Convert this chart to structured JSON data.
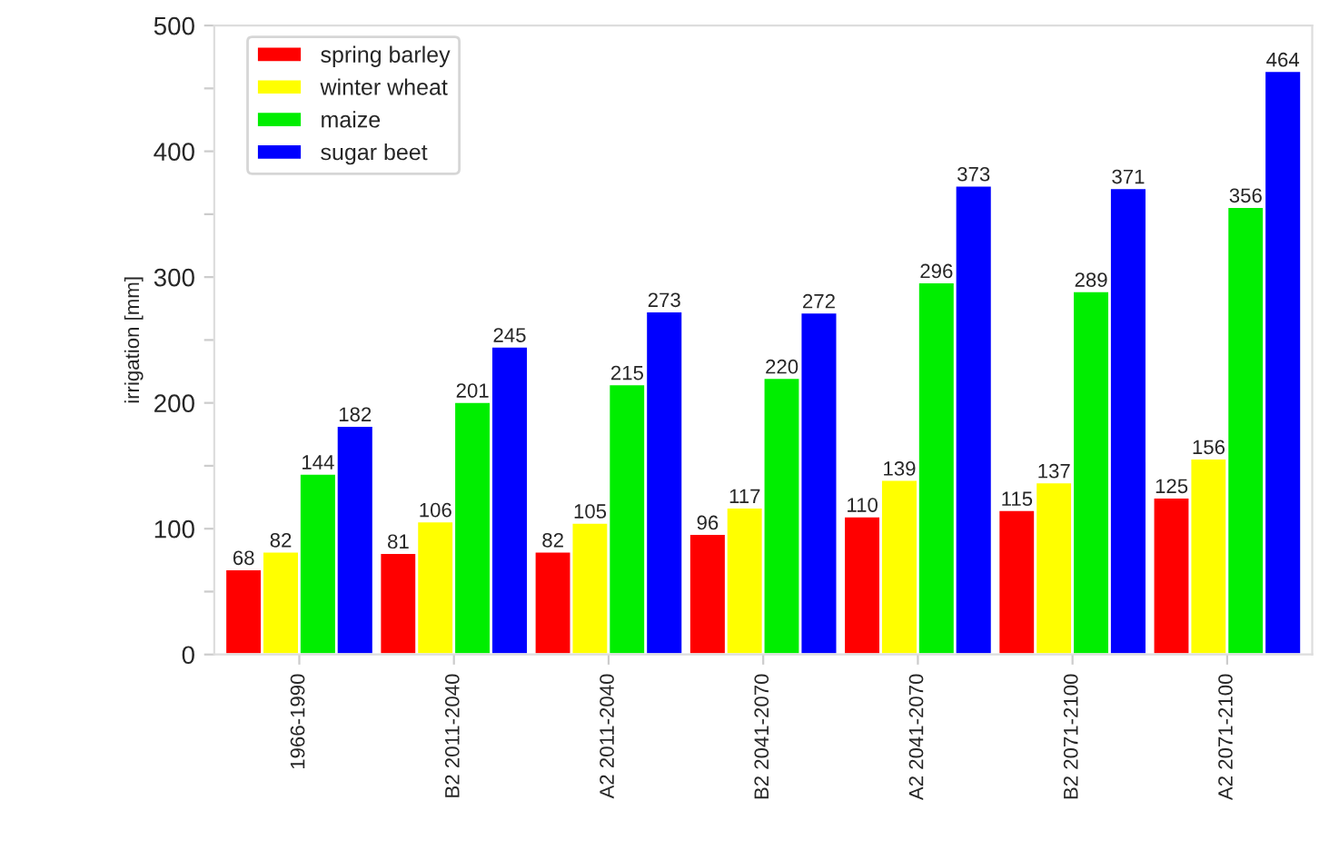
{
  "chart_data": {
    "type": "bar",
    "ylabel": "irrigation [mm]",
    "categories": [
      "1966-1990",
      "B2 2011-2040",
      "A2 2011-2040",
      "B2 2041-2070",
      "A2 2041-2070",
      "B2 2071-2100",
      "A2 2071-2100"
    ],
    "series": [
      {
        "name": "spring barley",
        "color": "#ff0000",
        "values": [
          68,
          81,
          82,
          96,
          110,
          115,
          125
        ]
      },
      {
        "name": "winter wheat",
        "color": "#ffff00",
        "values": [
          82,
          106,
          105,
          117,
          139,
          137,
          156
        ]
      },
      {
        "name": "maize",
        "color": "#00ee00",
        "values": [
          144,
          201,
          215,
          220,
          296,
          289,
          356
        ]
      },
      {
        "name": "sugar beet",
        "color": "#0000ff",
        "values": [
          182,
          245,
          273,
          272,
          373,
          371,
          464
        ]
      }
    ],
    "ylim": [
      0,
      500
    ],
    "yticks": [
      0,
      {
        "value": 50,
        "label": null
      },
      100,
      {
        "value": 150,
        "label": null
      },
      200,
      {
        "value": 250,
        "label": null
      },
      300,
      {
        "value": 350,
        "label": null
      },
      400,
      {
        "value": 450,
        "label": null
      },
      500
    ],
    "data_labels": true,
    "legend": "top left",
    "grid": false
  }
}
